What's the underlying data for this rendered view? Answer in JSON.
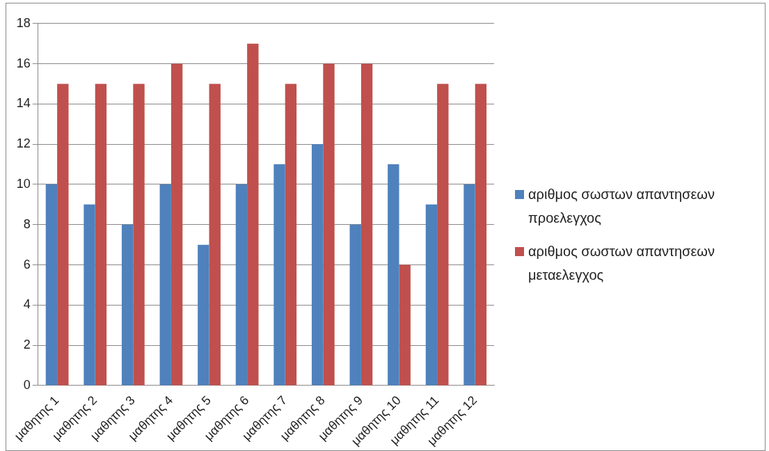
{
  "chart_data": {
    "type": "bar",
    "categories": [
      "μαθητης 1",
      "μαθητης 2",
      "μαθητης 3",
      "μαθητης 4",
      "μαθητης 5",
      "μαθητης 6",
      "μαθητης 7",
      "μαθητης 8",
      "μαθητης 9",
      "μαθητης 10",
      "μαθητης 11",
      "μαθητης 12"
    ],
    "series": [
      {
        "name": "αριθμος σωστων απαντησεων προελεγχος",
        "color": "#4f81bd",
        "values": [
          10,
          9,
          8,
          10,
          7,
          10,
          11,
          12,
          8,
          11,
          9,
          10
        ]
      },
      {
        "name": "αριθμος σωστων απαντησεων μεταελεγχος",
        "color": "#c0504d",
        "values": [
          15,
          15,
          15,
          16,
          15,
          17,
          15,
          16,
          16,
          6,
          15,
          15
        ]
      }
    ],
    "ylim": [
      0,
      18
    ],
    "yticks": [
      0,
      2,
      4,
      6,
      8,
      10,
      12,
      14,
      16,
      18
    ],
    "grid": "y",
    "legend": "right"
  }
}
